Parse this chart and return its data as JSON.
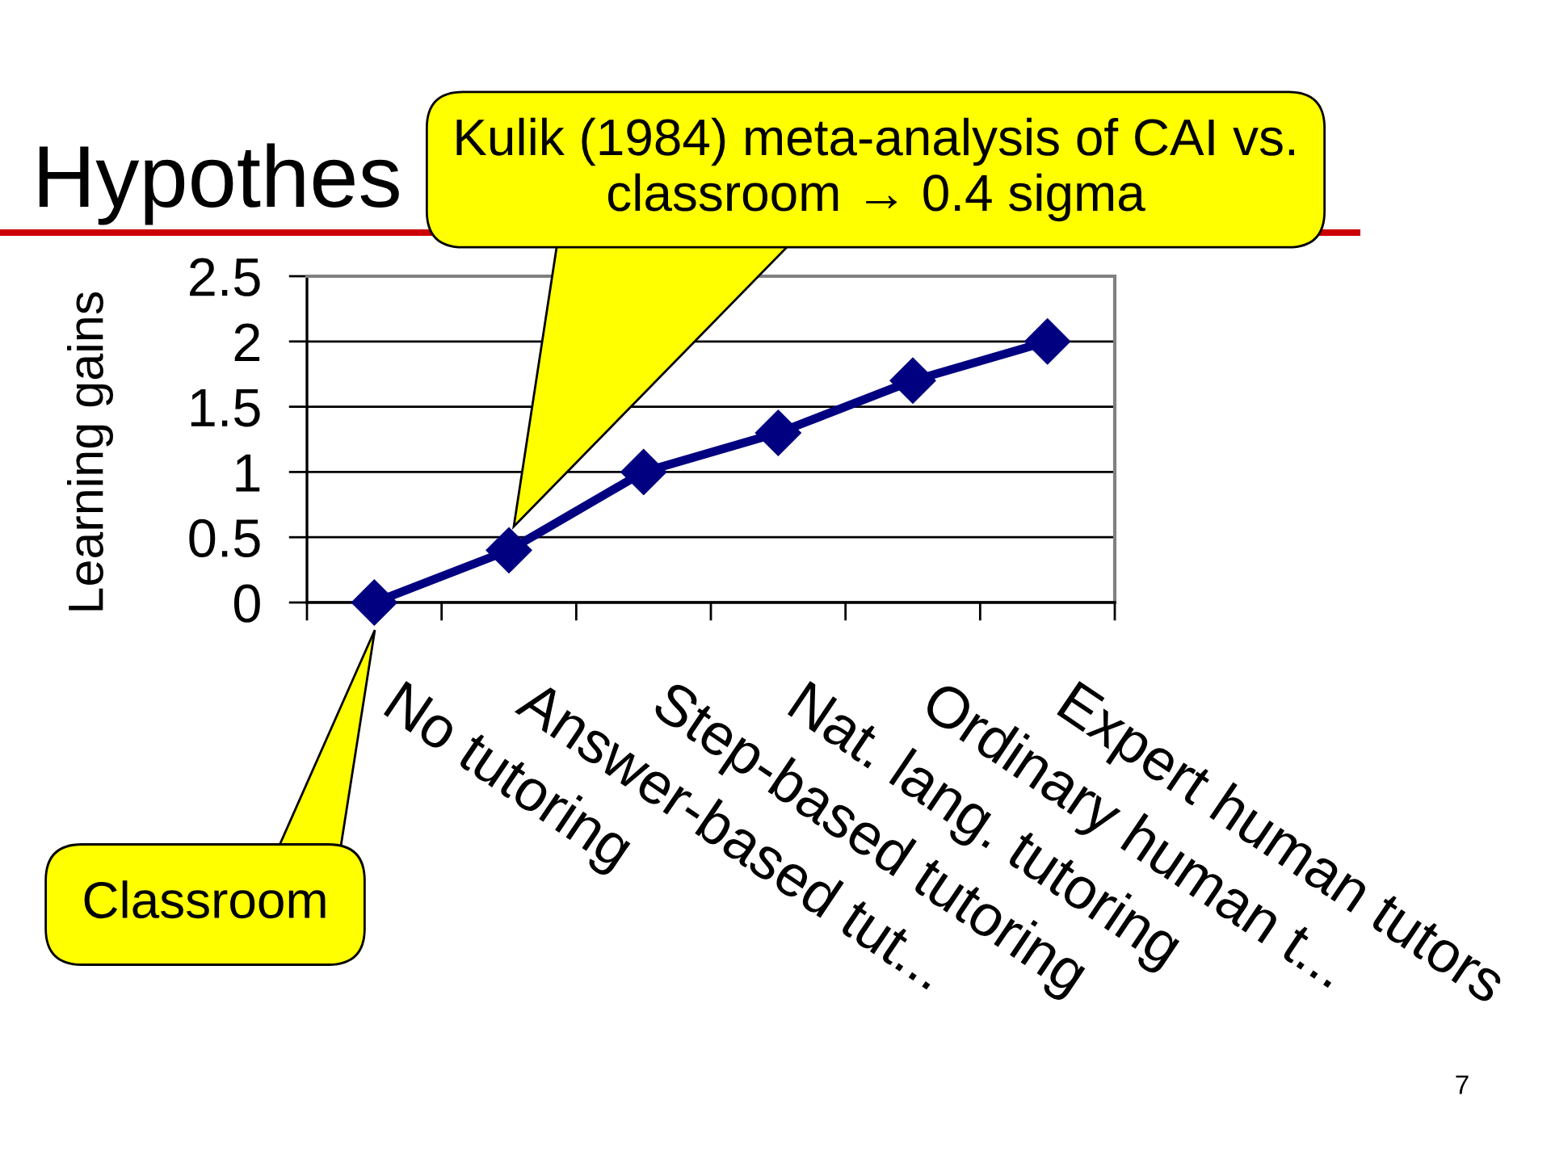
{
  "chart_data": {
    "type": "line",
    "title": "Hypothes",
    "ylabel": "Learning gains",
    "categories": [
      "No tutoring",
      "Answer-based tut...",
      "Step-based tutoring",
      "Nat. lang. tutoring",
      "Ordinary human t...",
      "Expert human tutors"
    ],
    "values": [
      0,
      0.4,
      1,
      1.3,
      1.7,
      2
    ],
    "color": "#000080",
    "ylim": [
      0,
      2.5
    ],
    "yticks": [
      0,
      0.5,
      1,
      1.5,
      2,
      2.5
    ],
    "grid": "y",
    "marker": "diamond",
    "line_style": "solid",
    "annotations": [
      "Kulik (1984) meta-analysis of CAI vs.\nclassroom → 0.4 sigma",
      "Classroom",
      "7"
    ]
  }
}
